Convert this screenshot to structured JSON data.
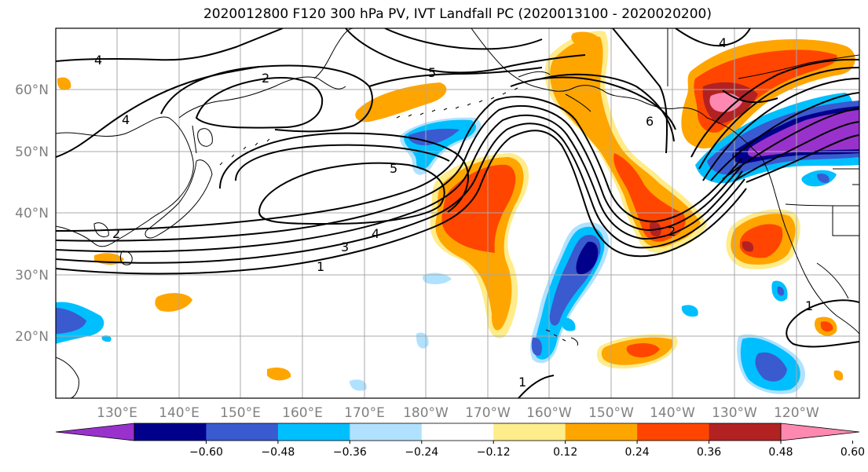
{
  "title": "2020012800 F120 300 hPa PV, IVT Landfall PC (2020013100 - 2020020200)",
  "lat_ticks": [
    "60°N",
    "50°N",
    "40°N",
    "30°N",
    "20°N"
  ],
  "lon_ticks": [
    "130°E",
    "140°E",
    "150°E",
    "160°E",
    "170°E",
    "180°W",
    "170°W",
    "160°W",
    "150°W",
    "140°W",
    "130°W",
    "120°W"
  ],
  "colorbar": {
    "colors": [
      "#9932cc",
      "#00008b",
      "#3a5ad0",
      "#00bfff",
      "#b0e2ff",
      "#ffffff",
      "#ffec8b",
      "#ffa500",
      "#ff4500",
      "#b22222",
      "#ff88b0"
    ],
    "labels": [
      "−0.60",
      "−0.48",
      "−0.36",
      "−0.24",
      "−0.12",
      "0.12",
      "0.24",
      "0.36",
      "0.48",
      "0.60"
    ],
    "extend": "both"
  },
  "contour_labels": [
    "4",
    "2",
    "5",
    "4",
    "5",
    "4",
    "3",
    "1",
    "2",
    "6",
    "4",
    "2",
    "1",
    "1"
  ]
}
